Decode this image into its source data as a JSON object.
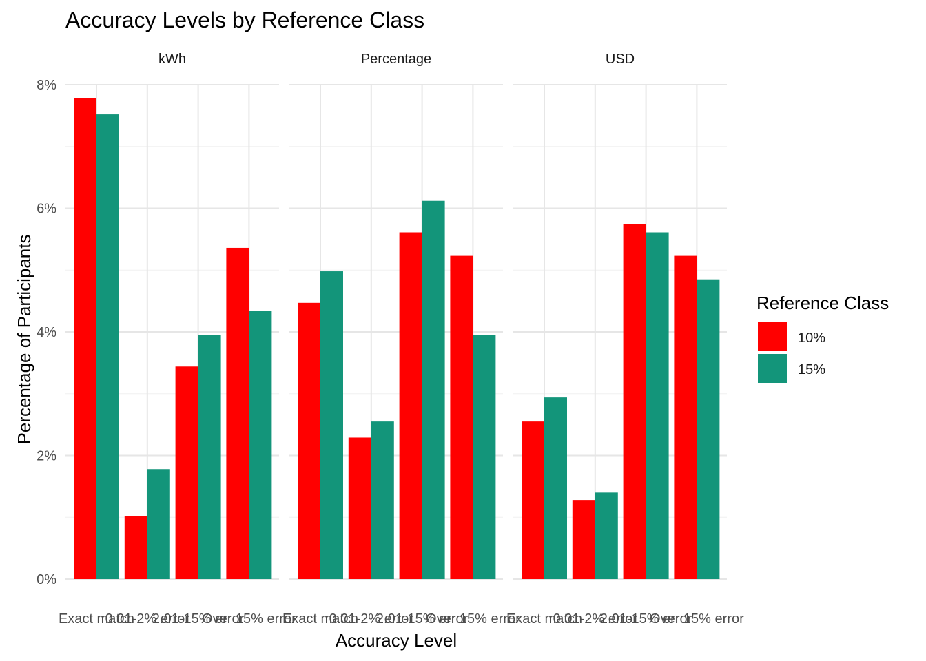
{
  "chart_data": {
    "type": "bar",
    "title": "Accuracy Levels by Reference Class",
    "xlabel": "Accuracy Level",
    "ylabel": "Percentage of Participants",
    "ylim": [
      0,
      8
    ],
    "y_ticks": [
      "0%",
      "2%",
      "4%",
      "6%",
      "8%"
    ],
    "y_tick_values": [
      0,
      2,
      4,
      6,
      8
    ],
    "grid": true,
    "legend_position": "right",
    "legend_title": "Reference Class",
    "categories": [
      "Exact match",
      "0.01-2% error",
      "2.01-15% error",
      "Over 15% error"
    ],
    "series": [
      {
        "name": "10%",
        "color": "#FF0000"
      },
      {
        "name": "15%",
        "color": "#13957A"
      }
    ],
    "facets": [
      {
        "name": "kWh",
        "values": [
          [
            7.78,
            7.52
          ],
          [
            1.02,
            1.78
          ],
          [
            3.44,
            3.95
          ],
          [
            5.36,
            4.34
          ]
        ]
      },
      {
        "name": "Percentage",
        "values": [
          [
            4.47,
            4.98
          ],
          [
            2.29,
            2.55
          ],
          [
            5.61,
            6.12
          ],
          [
            5.23,
            3.95
          ]
        ]
      },
      {
        "name": "USD",
        "values": [
          [
            2.55,
            2.94
          ],
          [
            1.28,
            1.4
          ],
          [
            5.74,
            5.61
          ],
          [
            5.23,
            4.85
          ]
        ]
      }
    ]
  }
}
